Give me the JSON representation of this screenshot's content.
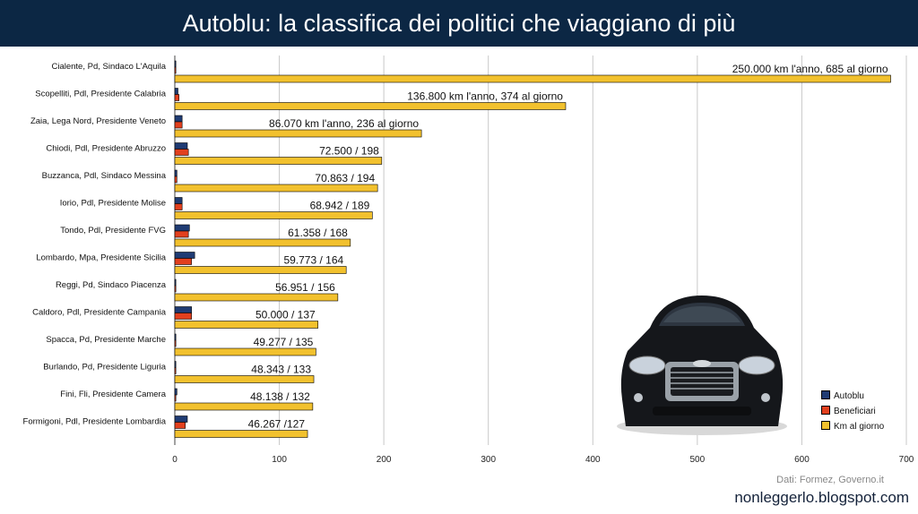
{
  "header": {
    "title": "Autoblu: la classifica dei politici che viaggiano di più"
  },
  "footer": {
    "source": "Dati: Formez, Governo.it",
    "credit": "nonleggerlo.blogspot.com"
  },
  "colors": {
    "autoblu": "#1f3b73",
    "beneficiari": "#e2401e",
    "km": "#f2c12e",
    "title_bg": "#0c2744"
  },
  "chart_data": {
    "type": "bar",
    "orientation": "horizontal",
    "categories": [
      "Cialente, Pd, Sindaco L'Aquila",
      "Scopelliti, Pdl, Presidente Calabria",
      "Zaia, Lega Nord, Presidente Veneto",
      "Chiodi, Pdl, Presidente Abruzzo",
      "Buzzanca, Pdl, Sindaco Messina",
      "Iorio, Pdl, Presidente Molise",
      "Tondo, Pdl, Presidente FVG",
      "Lombardo, Mpa, Presidente Sicilia",
      "Reggi, Pd, Sindaco Piacenza",
      "Caldoro, Pdl, Presidente Campania",
      "Spacca, Pd, Presidente Marche",
      "Burlando, Pd, Presidente Liguria",
      "Fini, Fli, Presidente Camera",
      "Formigoni, Pdl, Presidente Lombardia"
    ],
    "series": [
      {
        "name": "Autoblu",
        "values": [
          1,
          3,
          7,
          12,
          2,
          7,
          14,
          19,
          1,
          16,
          1,
          1,
          2,
          12
        ]
      },
      {
        "name": "Beneficiari",
        "values": [
          1,
          4,
          7,
          13,
          2,
          7,
          13,
          16,
          1,
          16,
          1,
          1,
          1,
          10
        ]
      },
      {
        "name": "Km al giorno",
        "values": [
          685,
          374,
          236,
          198,
          194,
          189,
          168,
          164,
          156,
          137,
          135,
          133,
          132,
          127
        ]
      }
    ],
    "data_labels": [
      "250.000 km l'anno, 685 al giorno",
      "136.800 km l'anno, 374 al giorno",
      "86.070 km l'anno, 236 al giorno",
      "72.500 / 198",
      "70.863 / 194",
      "68.942 / 189",
      "61.358 / 168",
      "59.773 / 164",
      "56.951 / 156",
      "50.000 / 137",
      "49.277 / 135",
      "48.343 / 133",
      "48.138 / 132",
      "46.267 /127"
    ],
    "xlim": [
      0,
      700
    ],
    "xticks": [
      0,
      100,
      200,
      300,
      400,
      500,
      600,
      700
    ],
    "grid": true,
    "legend_position": "bottom-right"
  }
}
